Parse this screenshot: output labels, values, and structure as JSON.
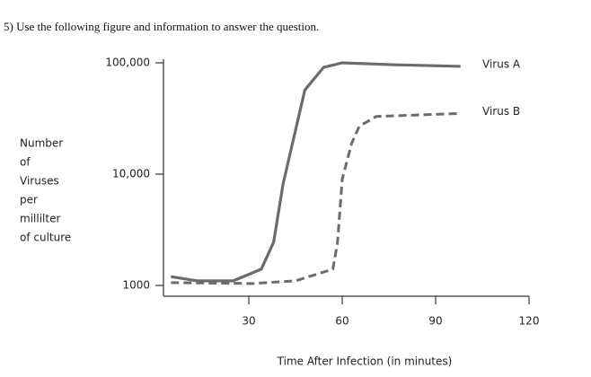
{
  "question": "5) Use the following figure and information to answer the question.",
  "chart_data": {
    "type": "line",
    "xlabel": "Time After Infection (in minutes)",
    "ylabel": [
      "Number",
      "of",
      "Viruses",
      "per",
      "millilter",
      "of culture"
    ],
    "log_y": true,
    "xlim": [
      0,
      120
    ],
    "xticks": [
      30,
      60,
      90,
      120
    ],
    "ylim": [
      1000,
      100000
    ],
    "yticks": [
      {
        "value": 100000,
        "label": "100,000"
      },
      {
        "value": 10000,
        "label": "10,000"
      },
      1000
    ],
    "series": [
      {
        "name": "Virus A",
        "color": "#6b6b6b",
        "dashed": false,
        "x": [
          5,
          13.5,
          25,
          34,
          38,
          41,
          44,
          48,
          54,
          60,
          77,
          98
        ],
        "values": [
          1200,
          1100,
          1100,
          1400,
          2450,
          8100,
          18700,
          57000,
          91000,
          100000,
          96000,
          93000
        ]
      },
      {
        "name": "Virus B",
        "color": "#6b6b6b",
        "dashed": true,
        "x": [
          5,
          31,
          45,
          57,
          58.5,
          60,
          63,
          65.5,
          71,
          97
        ],
        "values": [
          1060,
          1040,
          1100,
          1400,
          2440,
          9000,
          18800,
          27000,
          33000,
          35000
        ]
      }
    ]
  }
}
